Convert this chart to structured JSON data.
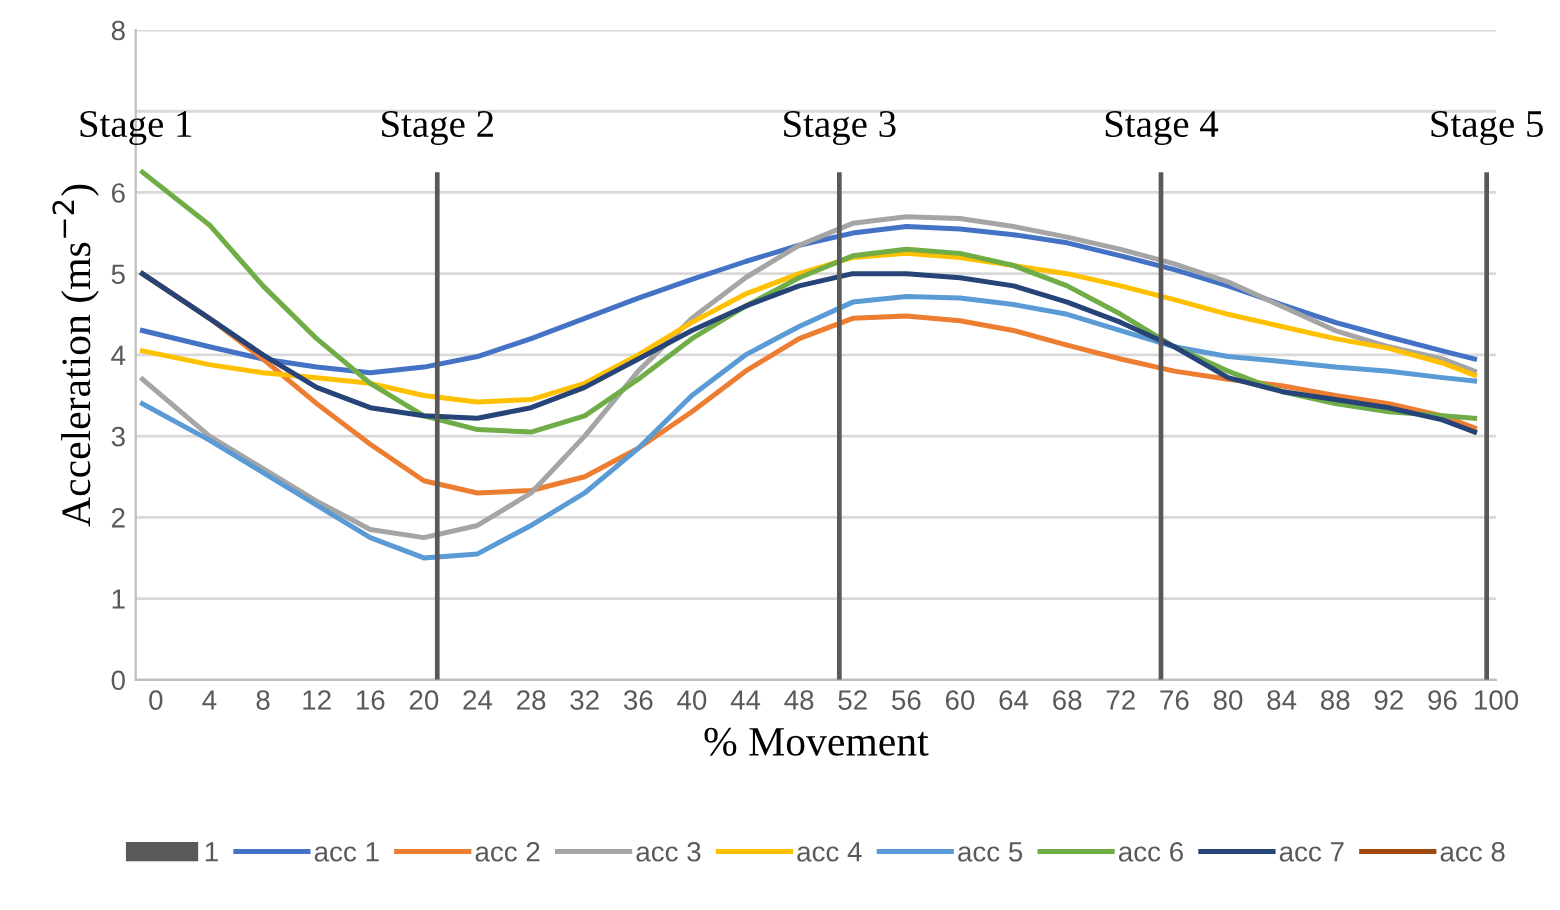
{
  "chart_data": {
    "type": "line",
    "xlabel": "% Movement",
    "ylabel": "Acceleration (ms$^{−2}$)",
    "x": [
      -1,
      4,
      8,
      12,
      16,
      20,
      24,
      28,
      32,
      36,
      40,
      44,
      48,
      52,
      56,
      60,
      64,
      68,
      72,
      76,
      80,
      84,
      88,
      92,
      96,
      98.4
    ],
    "series": [
      {
        "name": "1",
        "type": "bar",
        "color": "#595959",
        "x": [
          21,
          51,
          75,
          99.3
        ],
        "values": [
          6.25,
          6.25,
          6.25,
          6.25
        ]
      },
      {
        "name": "acc 1",
        "color": "#4472c4",
        "values": [
          4.3,
          4.1,
          3.95,
          3.85,
          3.78,
          3.85,
          3.98,
          4.2,
          4.45,
          4.7,
          4.93,
          5.15,
          5.35,
          5.5,
          5.58,
          5.55,
          5.48,
          5.38,
          5.22,
          5.05,
          4.85,
          4.62,
          4.4,
          4.22,
          4.05,
          3.95
        ]
      },
      {
        "name": "acc 2",
        "color": "#ed7d31",
        "values": [
          5.0,
          4.45,
          3.95,
          3.4,
          2.9,
          2.45,
          2.3,
          2.33,
          2.5,
          2.85,
          3.3,
          3.8,
          4.2,
          4.45,
          4.48,
          4.42,
          4.3,
          4.12,
          3.95,
          3.8,
          3.7,
          3.62,
          3.5,
          3.4,
          3.25,
          3.1
        ]
      },
      {
        "name": "acc 3",
        "color": "#a5a5a5",
        "values": [
          3.7,
          3.0,
          2.6,
          2.2,
          1.85,
          1.75,
          1.9,
          2.3,
          3.0,
          3.8,
          4.45,
          4.95,
          5.35,
          5.62,
          5.7,
          5.68,
          5.58,
          5.45,
          5.3,
          5.12,
          4.9,
          4.6,
          4.3,
          4.1,
          3.95,
          3.8
        ]
      },
      {
        "name": "acc 4",
        "color": "#ffc000",
        "values": [
          4.05,
          3.88,
          3.78,
          3.72,
          3.65,
          3.5,
          3.42,
          3.45,
          3.65,
          4.0,
          4.4,
          4.75,
          5.0,
          5.2,
          5.25,
          5.2,
          5.1,
          5.0,
          4.85,
          4.68,
          4.5,
          4.35,
          4.2,
          4.08,
          3.9,
          3.75
        ]
      },
      {
        "name": "acc 5",
        "color": "#5b9bd5",
        "values": [
          3.4,
          2.95,
          2.55,
          2.15,
          1.75,
          1.5,
          1.55,
          1.9,
          2.3,
          2.85,
          3.5,
          4.0,
          4.35,
          4.65,
          4.72,
          4.7,
          4.62,
          4.5,
          4.3,
          4.1,
          3.98,
          3.92,
          3.85,
          3.8,
          3.72,
          3.68
        ]
      },
      {
        "name": "acc 6",
        "color": "#70ad47",
        "values": [
          6.25,
          5.6,
          4.85,
          4.2,
          3.65,
          3.25,
          3.08,
          3.05,
          3.25,
          3.7,
          4.2,
          4.6,
          4.95,
          5.22,
          5.3,
          5.25,
          5.1,
          4.85,
          4.5,
          4.1,
          3.8,
          3.55,
          3.4,
          3.3,
          3.25,
          3.22
        ]
      },
      {
        "name": "acc 7",
        "color": "#264478",
        "values": [
          5.0,
          4.45,
          4.0,
          3.6,
          3.35,
          3.25,
          3.22,
          3.35,
          3.6,
          3.95,
          4.3,
          4.6,
          4.85,
          5.0,
          5.0,
          4.95,
          4.85,
          4.65,
          4.4,
          4.1,
          3.72,
          3.55,
          3.45,
          3.35,
          3.2,
          3.05
        ]
      },
      {
        "name": "acc 8",
        "color": "#9e480e",
        "values": [
          null,
          null,
          null,
          null,
          null,
          null,
          null,
          null,
          null,
          null,
          null,
          null,
          null,
          null,
          null,
          null,
          null,
          null,
          null,
          null,
          null,
          null,
          null,
          null,
          null,
          null
        ]
      }
    ],
    "annotations": [
      "Stage 1",
      "Stage 2",
      "Stage 3",
      "Stage 4",
      "Stage 5"
    ],
    "xlim": [
      -1.5,
      100
    ],
    "xticks": [
      0,
      4,
      8,
      12,
      16,
      20,
      24,
      28,
      32,
      36,
      40,
      44,
      48,
      52,
      56,
      60,
      64,
      68,
      72,
      76,
      80,
      84,
      88,
      92,
      96,
      100
    ],
    "ylim": [
      0,
      8
    ],
    "yticks": [
      0,
      1,
      2,
      3,
      4,
      5,
      6,
      {
        "value": 7,
        "label": null
      },
      8
    ],
    "grid": "y",
    "legend": "bottom",
    "marker": "none",
    "line_style": "solid"
  }
}
